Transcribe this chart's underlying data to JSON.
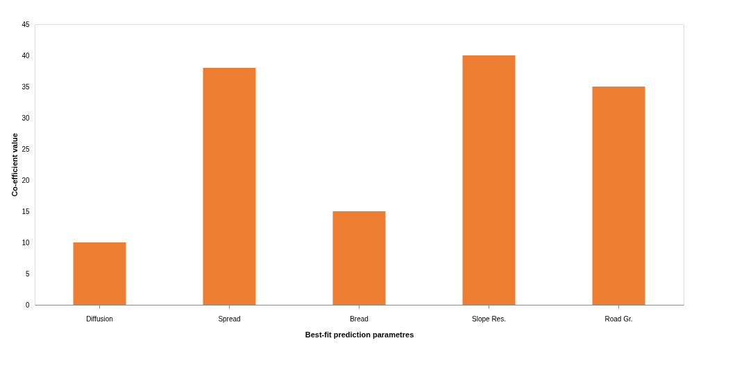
{
  "chart_data": {
    "type": "bar",
    "xlabel": "Best-fit prediction parametres",
    "ylabel": "Co-efficient value",
    "categories": [
      "Diffusion",
      "Spread",
      "Bread",
      "Slope Res.",
      "Road Gr."
    ],
    "values": [
      10,
      38,
      15,
      40,
      35
    ],
    "color": "#ed7d31",
    "ylim": [
      0,
      45
    ],
    "yticks": [
      0,
      5,
      10,
      15,
      20,
      25,
      30,
      35,
      40,
      45
    ],
    "grid": false
  }
}
